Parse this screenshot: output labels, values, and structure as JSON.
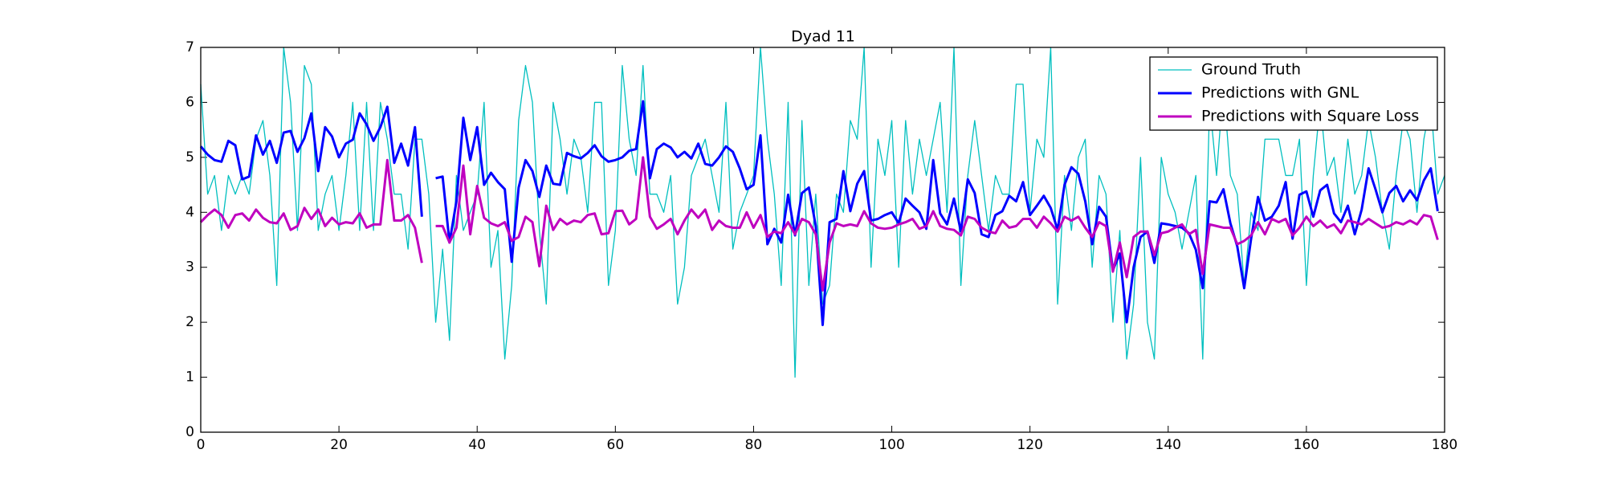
{
  "chart_data": {
    "type": "line",
    "title": "Dyad 11",
    "x": [
      0,
      1,
      2,
      3,
      4,
      5,
      6,
      7,
      8,
      9,
      10,
      11,
      12,
      13,
      14,
      15,
      16,
      17,
      18,
      19,
      20,
      21,
      22,
      23,
      24,
      25,
      26,
      27,
      28,
      29,
      30,
      31,
      32,
      33,
      34,
      35,
      36,
      37,
      38,
      39,
      40,
      41,
      42,
      43,
      44,
      45,
      46,
      47,
      48,
      49,
      50,
      51,
      52,
      53,
      54,
      55,
      56,
      57,
      58,
      59,
      60,
      61,
      62,
      63,
      64,
      65,
      66,
      67,
      68,
      69,
      70,
      71,
      72,
      73,
      74,
      75,
      76,
      77,
      78,
      79,
      80,
      81,
      82,
      83,
      84,
      85,
      86,
      87,
      88,
      89,
      90,
      91,
      92,
      93,
      94,
      95,
      96,
      97,
      98,
      99,
      100,
      101,
      102,
      103,
      104,
      105,
      106,
      107,
      108,
      109,
      110,
      111,
      112,
      113,
      114,
      115,
      116,
      117,
      118,
      119,
      120,
      121,
      122,
      123,
      124,
      125,
      126,
      127,
      128,
      129,
      130,
      131,
      132,
      133,
      134,
      135,
      136,
      137,
      138,
      139,
      140,
      141,
      142,
      143,
      144,
      145,
      146,
      147,
      148,
      149,
      150,
      151,
      152,
      153,
      154,
      155,
      156,
      157,
      158,
      159,
      160,
      161,
      162,
      163,
      164,
      165,
      166,
      167,
      168,
      169,
      170,
      171,
      172,
      173,
      174,
      175,
      176,
      177,
      178,
      179,
      180
    ],
    "series": [
      {
        "name": "Ground Truth",
        "color": "#00bfbf",
        "width": 1.3,
        "values": [
          6.33,
          4.33,
          4.67,
          3.67,
          4.67,
          4.33,
          4.67,
          4.33,
          5.33,
          5.67,
          4.67,
          2.67,
          7,
          6,
          3.67,
          6.67,
          6.33,
          3.67,
          4.33,
          4.67,
          3.67,
          4.67,
          6,
          3.67,
          6,
          3.67,
          6,
          5.33,
          4.33,
          4.33,
          3.33,
          5.33,
          5.33,
          4.33,
          2,
          3.33,
          1.67,
          4.67,
          3.67,
          4,
          4.33,
          6,
          3,
          3.67,
          1.33,
          2.67,
          5.67,
          6.67,
          6,
          3.67,
          2.33,
          6,
          5.33,
          4.33,
          5.33,
          5,
          4,
          6,
          6,
          2.67,
          3.67,
          6.67,
          5.33,
          4.67,
          6.67,
          4.33,
          4.33,
          4,
          4.67,
          2.33,
          3,
          4.67,
          5,
          5.33,
          4.67,
          4,
          6,
          3.33,
          4,
          4.33,
          4.67,
          7,
          5.33,
          4.33,
          2.67,
          6,
          1,
          5.67,
          2.67,
          4.33,
          2.33,
          2.67,
          4.33,
          4,
          5.67,
          5.33,
          7,
          3,
          5.33,
          4.67,
          5.67,
          3,
          5.67,
          4.33,
          5.33,
          4.67,
          5.33,
          6,
          4,
          7,
          2.67,
          4.67,
          5.67,
          4.67,
          3.67,
          4.67,
          4.33,
          4.33,
          6.33,
          6.33,
          4,
          5.33,
          5,
          7,
          2.33,
          4.67,
          3.67,
          5,
          5.33,
          3,
          4.67,
          4.33,
          2,
          3.67,
          1.33,
          2.33,
          5,
          2,
          1.33,
          5,
          4.33,
          4,
          3.33,
          4,
          4.67,
          1.33,
          6,
          4.67,
          6.33,
          4.67,
          4.33,
          2.67,
          4,
          3.67,
          5.33,
          5.33,
          5.33,
          4.67,
          4.67,
          5.33,
          2.67,
          4.67,
          6,
          4.67,
          5,
          4,
          5.33,
          4.33,
          4.67,
          5.67,
          5,
          4,
          3.33,
          4.67,
          5.67,
          5.33,
          4,
          5.33,
          6,
          4.33,
          4.67
        ]
      },
      {
        "name": "Predictions with GNL",
        "color": "#0000ff",
        "width": 3,
        "values": [
          5.2,
          5.05,
          4.95,
          4.92,
          5.3,
          5.22,
          4.6,
          4.65,
          5.4,
          5.05,
          5.3,
          4.9,
          5.45,
          5.48,
          5.1,
          5.35,
          5.8,
          4.75,
          5.55,
          5.38,
          5.0,
          5.25,
          5.32,
          5.8,
          5.6,
          5.3,
          5.55,
          5.92,
          4.9,
          5.25,
          4.85,
          5.55,
          3.92,
          null,
          4.62,
          4.65,
          3.45,
          4.2,
          5.72,
          4.95,
          5.55,
          4.5,
          4.72,
          4.55,
          4.42,
          3.1,
          4.45,
          4.95,
          4.75,
          4.28,
          4.85,
          4.52,
          4.5,
          5.08,
          5.02,
          4.98,
          5.08,
          5.22,
          5.02,
          4.92,
          4.95,
          5.0,
          5.12,
          5.15,
          6.02,
          4.62,
          5.15,
          5.25,
          5.18,
          5.0,
          5.1,
          4.98,
          5.25,
          4.88,
          4.85,
          5.0,
          5.2,
          5.1,
          4.8,
          4.42,
          4.5,
          5.4,
          3.42,
          3.7,
          3.45,
          4.32,
          3.58,
          4.35,
          4.45,
          3.75,
          1.95,
          3.82,
          3.88,
          4.75,
          4.02,
          4.52,
          4.75,
          3.85,
          3.88,
          3.95,
          4.0,
          3.8,
          4.25,
          4.12,
          4.0,
          3.7,
          4.95,
          3.98,
          3.78,
          4.25,
          3.65,
          4.6,
          4.35,
          3.6,
          3.55,
          3.95,
          4.02,
          4.3,
          4.2,
          4.55,
          3.95,
          4.12,
          4.3,
          4.08,
          3.68,
          4.5,
          4.82,
          4.7,
          4.2,
          3.42,
          4.1,
          3.92,
          2.95,
          3.25,
          2.0,
          3.0,
          3.55,
          3.65,
          3.08,
          3.8,
          3.78,
          3.75,
          3.72,
          3.62,
          3.32,
          2.62,
          4.2,
          4.18,
          4.42,
          3.8,
          3.38,
          2.62,
          3.52,
          4.28,
          3.85,
          3.92,
          4.12,
          4.55,
          3.52,
          4.32,
          4.38,
          3.92,
          4.4,
          4.5,
          3.98,
          3.82,
          4.12,
          3.6,
          4.05,
          4.8,
          4.42,
          4.0,
          4.35,
          4.48,
          4.2,
          4.4,
          4.22,
          4.58,
          4.8,
          4.02,
          null
        ]
      },
      {
        "name": "Predictions with Square Loss",
        "color": "#bf00bf",
        "width": 3,
        "values": [
          3.82,
          3.95,
          4.05,
          3.95,
          3.72,
          3.95,
          3.98,
          3.85,
          4.05,
          3.9,
          3.82,
          3.8,
          3.98,
          3.68,
          3.75,
          4.08,
          3.88,
          4.05,
          3.75,
          3.9,
          3.78,
          3.82,
          3.8,
          3.98,
          3.72,
          3.78,
          3.78,
          4.95,
          3.85,
          3.85,
          3.95,
          3.72,
          3.08,
          null,
          3.75,
          3.75,
          3.45,
          3.72,
          4.85,
          3.6,
          4.48,
          3.9,
          3.8,
          3.75,
          3.82,
          3.48,
          3.55,
          3.92,
          3.82,
          3.02,
          4.12,
          3.68,
          3.88,
          3.78,
          3.85,
          3.82,
          3.95,
          3.98,
          3.6,
          3.62,
          4.02,
          4.03,
          3.78,
          3.88,
          5.0,
          3.92,
          3.7,
          3.78,
          3.88,
          3.6,
          3.85,
          4.05,
          3.9,
          4.05,
          3.68,
          3.85,
          3.75,
          3.72,
          3.72,
          4.0,
          3.72,
          3.95,
          3.55,
          3.65,
          3.62,
          3.82,
          3.6,
          3.88,
          3.82,
          3.6,
          2.58,
          3.45,
          3.8,
          3.75,
          3.78,
          3.75,
          4.02,
          3.8,
          3.72,
          3.7,
          3.72,
          3.78,
          3.82,
          3.88,
          3.7,
          3.75,
          4.02,
          3.75,
          3.7,
          3.68,
          3.58,
          3.92,
          3.88,
          3.72,
          3.65,
          3.62,
          3.85,
          3.72,
          3.75,
          3.88,
          3.88,
          3.72,
          3.92,
          3.8,
          3.65,
          3.92,
          3.85,
          3.92,
          3.72,
          3.55,
          3.82,
          3.75,
          2.92,
          3.45,
          2.82,
          3.55,
          3.65,
          3.65,
          3.22,
          3.62,
          3.65,
          3.72,
          3.78,
          3.6,
          3.68,
          2.88,
          3.78,
          3.75,
          3.72,
          3.72,
          3.42,
          3.48,
          3.58,
          3.82,
          3.6,
          3.88,
          3.82,
          3.88,
          3.58,
          3.72,
          3.92,
          3.75,
          3.85,
          3.72,
          3.78,
          3.62,
          3.85,
          3.82,
          3.78,
          3.88,
          3.8,
          3.72,
          3.75,
          3.82,
          3.78,
          3.85,
          3.78,
          3.95,
          3.92,
          3.5,
          null
        ]
      }
    ],
    "xlim": [
      0,
      180
    ],
    "xticks": [
      0,
      20,
      40,
      60,
      80,
      100,
      120,
      140,
      160,
      180
    ],
    "ylim": [
      0,
      7
    ],
    "yticks": [
      0,
      1,
      2,
      3,
      4,
      5,
      6,
      7
    ],
    "grid": false,
    "legend": "upper right"
  }
}
